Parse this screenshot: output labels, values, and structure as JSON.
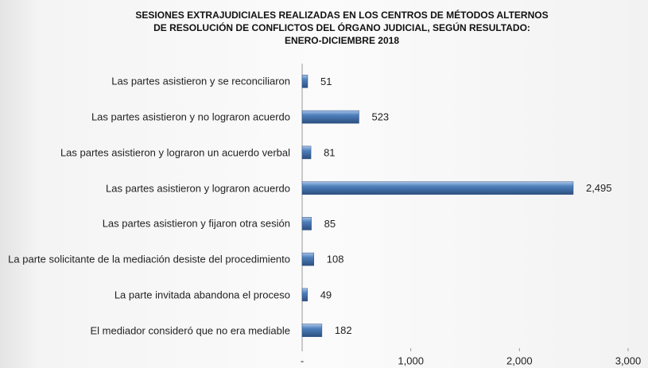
{
  "chart_data": {
    "type": "bar",
    "orientation": "horizontal",
    "title": [
      "SESIONES EXTRAJUDICIALES REALIZADAS EN LOS CENTROS DE MÉTODOS ALTERNOS",
      "DE RESOLUCIÓN DE CONFLICTOS DEL ÓRGANO JUDICIAL, SEGÚN RESULTADO:",
      "ENERO-DICIEMBRE 2018"
    ],
    "categories": [
      "Las partes asistieron y se reconciliaron",
      "Las partes asistieron y no lograron acuerdo",
      "Las partes asistieron y lograron un acuerdo verbal",
      "Las partes asistieron y lograron acuerdo",
      "Las partes asistieron y fijaron otra sesión",
      "La parte solicitante de la mediación desiste del procedimiento",
      "La parte invitada abandona el proceso",
      "El mediador consideró que no era mediable"
    ],
    "values": [
      51,
      523,
      81,
      2495,
      85,
      108,
      49,
      182
    ],
    "value_labels": [
      "51",
      "523",
      "81",
      "2,495",
      "85",
      "108",
      "49",
      "182"
    ],
    "color": "#4f81bd",
    "xlim": [
      0,
      3000
    ],
    "xticks": [
      {
        "value": 0,
        "label": "-"
      },
      {
        "value": 1000,
        "label": "1,000"
      },
      {
        "value": 2000,
        "label": "2,000"
      },
      {
        "value": 3000,
        "label": "3,000"
      }
    ]
  }
}
